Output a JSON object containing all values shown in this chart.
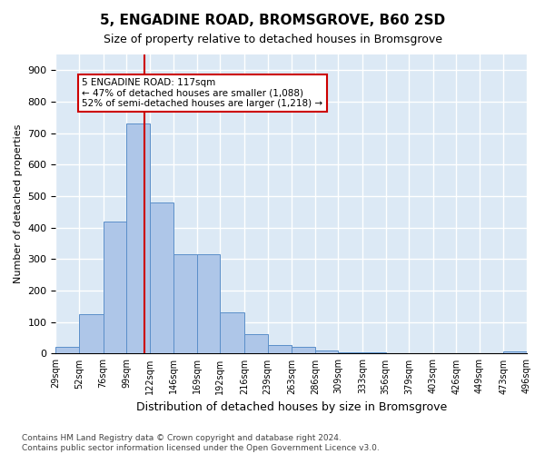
{
  "title": "5, ENGADINE ROAD, BROMSGROVE, B60 2SD",
  "subtitle": "Size of property relative to detached houses in Bromsgrove",
  "xlabel": "Distribution of detached houses by size in Bromsgrove",
  "ylabel": "Number of detached properties",
  "bin_edges": [
    29,
    52,
    76,
    99,
    122,
    146,
    169,
    192,
    216,
    239,
    263,
    286,
    309,
    333,
    356,
    379,
    403,
    426,
    449,
    473,
    496
  ],
  "bar_heights": [
    20,
    125,
    420,
    730,
    480,
    315,
    315,
    130,
    62,
    27,
    20,
    10,
    5,
    3,
    2,
    1,
    0,
    0,
    0,
    7
  ],
  "tick_labels": [
    "29sqm",
    "52sqm",
    "76sqm",
    "99sqm",
    "122sqm",
    "146sqm",
    "169sqm",
    "192sqm",
    "216sqm",
    "239sqm",
    "263sqm",
    "286sqm",
    "309sqm",
    "333sqm",
    "356sqm",
    "379sqm",
    "403sqm",
    "426sqm",
    "449sqm",
    "473sqm",
    "496sqm"
  ],
  "bar_color": "#aec6e8",
  "bar_edge_color": "#5b8fc9",
  "vline_x": 117,
  "vline_color": "#cc0000",
  "annotation_text": "5 ENGADINE ROAD: 117sqm\n← 47% of detached houses are smaller (1,088)\n52% of semi-detached houses are larger (1,218) →",
  "annotation_box_color": "#ffffff",
  "annotation_box_edge": "#cc0000",
  "ylim": [
    0,
    950
  ],
  "yticks": [
    0,
    100,
    200,
    300,
    400,
    500,
    600,
    700,
    800,
    900
  ],
  "bg_color": "#dce9f5",
  "grid_color": "#ffffff",
  "footer": "Contains HM Land Registry data © Crown copyright and database right 2024.\nContains public sector information licensed under the Open Government Licence v3.0."
}
